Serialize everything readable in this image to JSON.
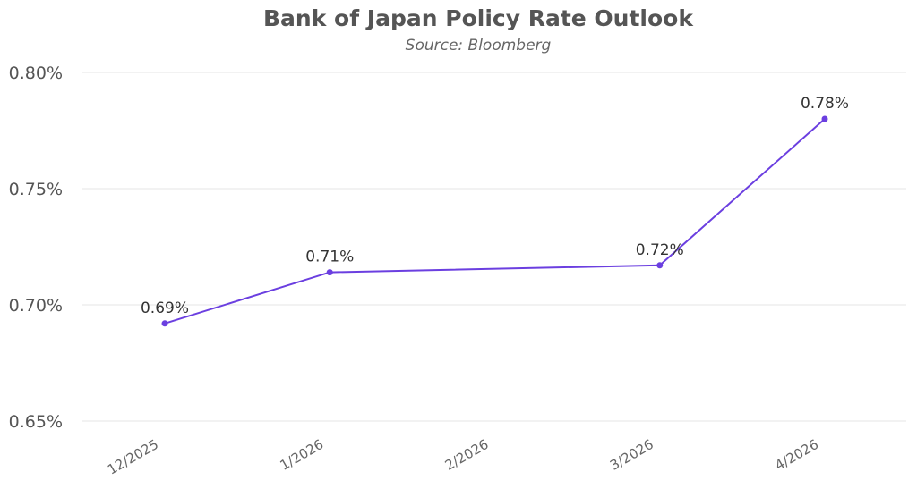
{
  "chart_data": {
    "type": "line",
    "title": "Bank of Japan Policy Rate Outlook",
    "subtitle": "Source: Bloomberg",
    "xlabel": "",
    "ylabel": "",
    "categories": [
      "12/2025",
      "1/2026",
      "2/2026",
      "3/2026",
      "4/2026"
    ],
    "series": [
      {
        "name": "Policy Rate",
        "color": "#6b3fe0",
        "values": [
          0.692,
          0.714,
          null,
          0.717,
          0.78
        ],
        "labels": [
          "0.69%",
          "0.71%",
          "",
          "0.72%",
          "0.78%"
        ]
      }
    ],
    "ylim": [
      0.65,
      0.8
    ],
    "yticks": [
      0.65,
      0.7,
      0.75,
      0.8
    ],
    "ytick_labels": [
      "0.65%",
      "0.70%",
      "0.75%",
      "0.80%"
    ],
    "grid": true,
    "legend": "none"
  }
}
